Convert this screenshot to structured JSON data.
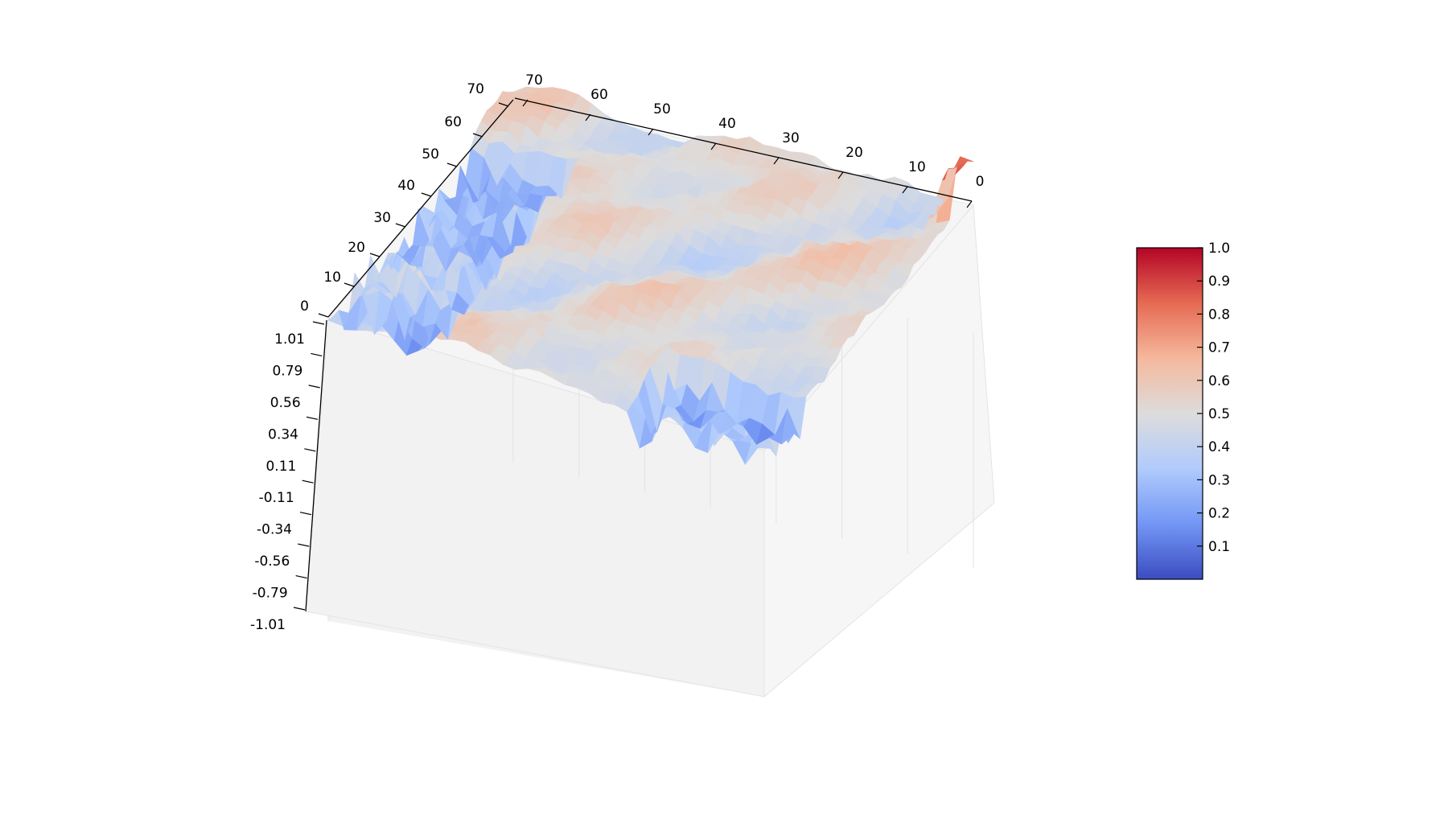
{
  "chart_data": {
    "type": "surface3d",
    "title": "",
    "colormap": "coolwarm",
    "x_axis": {
      "ticks": [
        "0",
        "10",
        "20",
        "30",
        "40",
        "50",
        "60",
        "70"
      ],
      "range": [
        0,
        70
      ]
    },
    "y_axis": {
      "ticks": [
        "70",
        "60",
        "50",
        "40",
        "30",
        "20",
        "10",
        "0"
      ],
      "range": [
        0,
        70
      ]
    },
    "z_axis": {
      "ticks": [
        "1.01",
        "0.79",
        "0.56",
        "0.34",
        "0.11",
        "-0.11",
        "-0.34",
        "-0.56",
        "-0.79",
        "-1.01"
      ],
      "range": [
        -1.01,
        1.01
      ]
    },
    "colorbar": {
      "ticks": [
        "1.0",
        "0.9",
        "0.8",
        "0.7",
        "0.6",
        "0.5",
        "0.4",
        "0.3",
        "0.2",
        "0.1"
      ],
      "range": [
        0,
        1
      ],
      "colors": [
        "#3b4cc0",
        "#7396f5",
        "#b0cbfc",
        "#dddcdc",
        "#f5b89c",
        "#e66a53",
        "#b40426"
      ]
    },
    "surface_summary": {
      "z_base_level": 0.5,
      "low_regions": [
        "left edge strip near x=60-70",
        "front-right edge near x=0-20, y=0-10"
      ],
      "high_regions": [
        "spike near x=2, y=70",
        "ridges around center"
      ]
    }
  }
}
